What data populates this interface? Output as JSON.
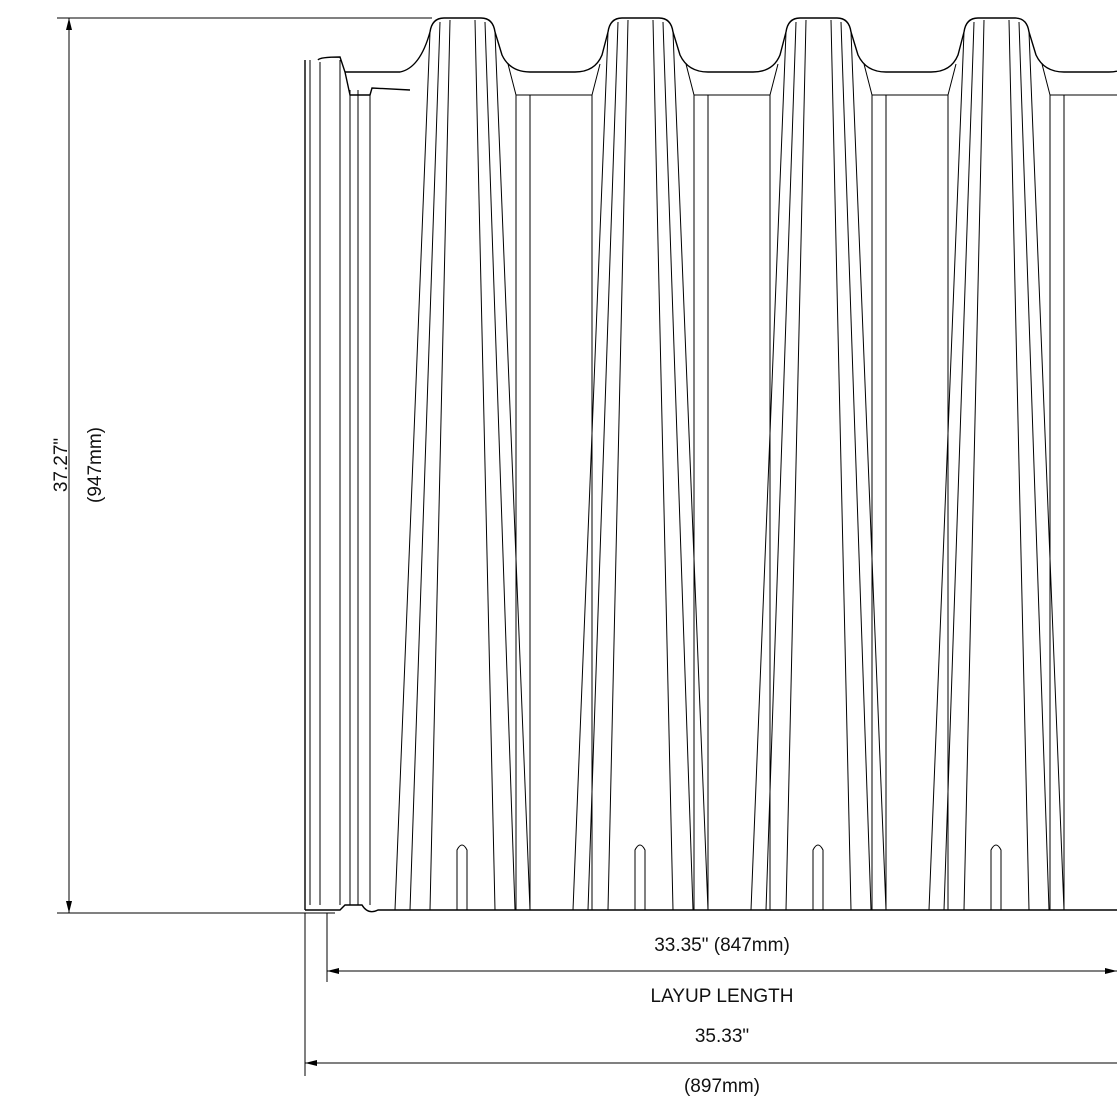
{
  "dimensions": {
    "height": {
      "imperial": "37.27\"",
      "metric": "(947mm)"
    },
    "layup_length": {
      "value": "33.35\" (847mm)",
      "label": "LAYUP LENGTH"
    },
    "overall_length": {
      "imperial": "35.33\"",
      "metric": "(897mm)"
    }
  }
}
